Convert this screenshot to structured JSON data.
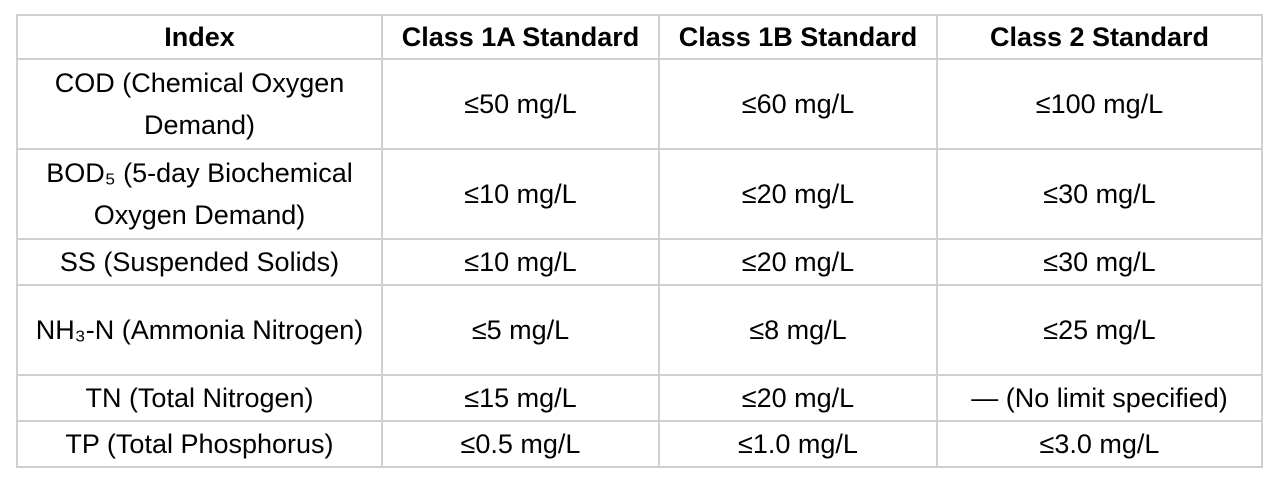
{
  "table": {
    "header": [
      "Index",
      "Class 1A Standard",
      "Class 1B Standard",
      "Class 2 Standard"
    ],
    "rows": [
      [
        "COD (Chemical Oxygen Demand)",
        "≤50 mg/L",
        "≤60 mg/L",
        "≤100 mg/L"
      ],
      [
        "BOD₅ (5-day Biochemical Oxygen Demand)",
        "≤10 mg/L",
        "≤20 mg/L",
        "≤30 mg/L"
      ],
      [
        "SS (Suspended Solids)",
        "≤10 mg/L",
        "≤20 mg/L",
        "≤30 mg/L"
      ],
      [
        "NH₃-N (Ammonia Nitrogen)",
        "≤5 mg/L",
        "≤8 mg/L",
        "≤25 mg/L"
      ],
      [
        "TN (Total Nitrogen)",
        "≤15 mg/L",
        "≤20 mg/L",
        "— (No limit specified)"
      ],
      [
        "TP (Total Phosphorus)",
        "≤0.5 mg/L",
        "≤1.0 mg/L",
        "≤3.0 mg/L"
      ]
    ]
  }
}
